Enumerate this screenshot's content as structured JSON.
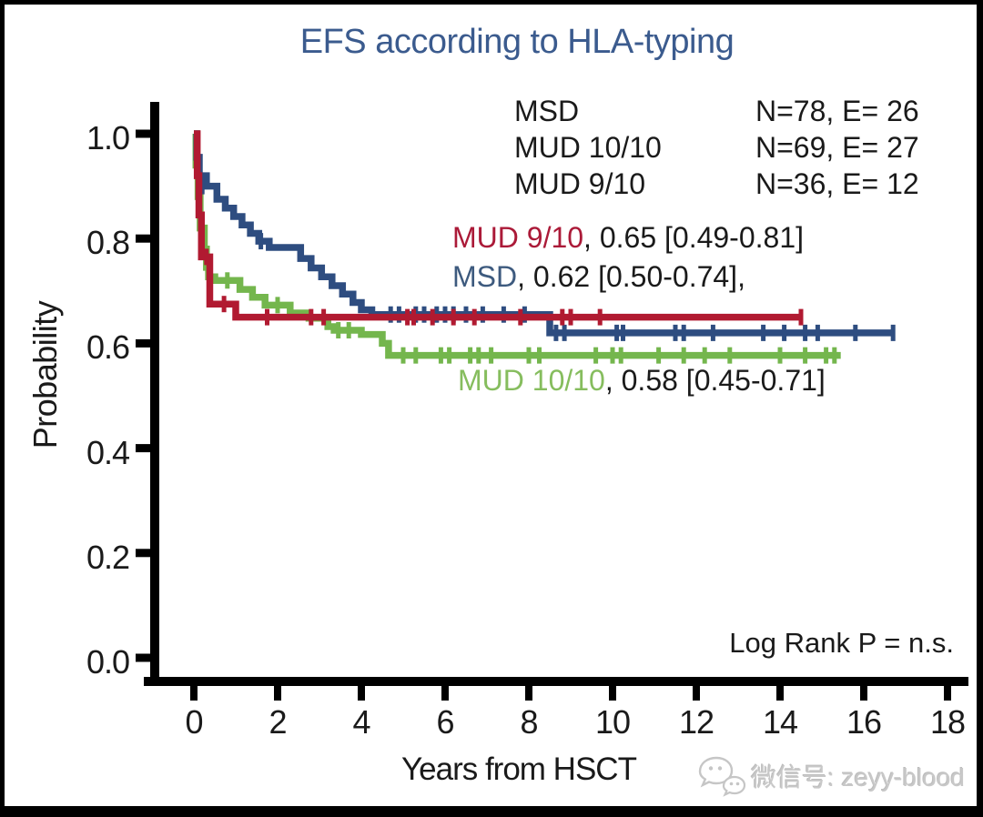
{
  "colors": {
    "background": "#ffffff",
    "frame": "#000000",
    "text": "#1a1a1a",
    "title": "#3b5b8e",
    "watermark": "#c8c8c8",
    "msd_blue": "#2e4d80",
    "mud1010_green": "#74b64d",
    "mud910_red": "#b11a31"
  },
  "title": "EFS according to HLA-typing",
  "legend": {
    "rows": [
      {
        "label": "MSD",
        "counts": "N=78, E= 26"
      },
      {
        "label": "MUD 10/10",
        "counts": "N=69, E= 27"
      },
      {
        "label": "MUD 9/10",
        "counts": "N=36, E= 12"
      }
    ]
  },
  "annotations": [
    {
      "label": "MUD 9/10",
      "rest": ", 0.65 [0.49-0.81]",
      "color": "#ab1a38"
    },
    {
      "label": "MSD",
      "rest": ", 0.62 [0.50-0.74],",
      "color": "#3d5a7e"
    },
    {
      "label": "MUD 10/10",
      "rest": ", 0.58 [0.45-0.71]",
      "color": "#86bd5e"
    }
  ],
  "stats_label": "Log Rank P = n.s.",
  "watermark": {
    "icon": "wechat-icon",
    "text": "微信号: zeyy-blood"
  },
  "chart_data": {
    "type": "line",
    "variant": "kaplan-meier-step",
    "title": "EFS according to HLA-typing",
    "xlabel": "Years from HSCT",
    "ylabel": "Probability",
    "xlim": [
      0,
      18
    ],
    "ylim": [
      0.0,
      1.0
    ],
    "xticks": [
      0,
      2,
      4,
      6,
      8,
      10,
      12,
      14,
      16,
      18
    ],
    "yticks": [
      1.0,
      0.8,
      0.6,
      0.4,
      0.2,
      0.0
    ],
    "grid": false,
    "legend_position": "top-right-inside",
    "stats": "Log Rank P = n.s.",
    "series": [
      {
        "name": "MSD",
        "color": "#2e4d80",
        "n": 78,
        "events": 26,
        "estimate": 0.62,
        "ci": [
          0.5,
          0.74
        ],
        "end": 16.7,
        "steps": [
          [
            0,
            1.0
          ],
          [
            0.07,
            0.955
          ],
          [
            0.13,
            0.92
          ],
          [
            0.3,
            0.9
          ],
          [
            0.55,
            0.875
          ],
          [
            0.75,
            0.858
          ],
          [
            0.95,
            0.842
          ],
          [
            1.15,
            0.826
          ],
          [
            1.35,
            0.81
          ],
          [
            1.55,
            0.795
          ],
          [
            1.8,
            0.783
          ],
          [
            2.55,
            0.762
          ],
          [
            2.8,
            0.744
          ],
          [
            3.05,
            0.727
          ],
          [
            3.3,
            0.71
          ],
          [
            3.55,
            0.694
          ],
          [
            3.8,
            0.678
          ],
          [
            4.0,
            0.664
          ],
          [
            4.25,
            0.655
          ],
          [
            8.5,
            0.62
          ]
        ],
        "censors": [
          [
            0.2,
            0.9
          ],
          [
            1.6,
            0.795
          ],
          [
            4.7,
            0.655
          ],
          [
            4.9,
            0.655
          ],
          [
            5.3,
            0.655
          ],
          [
            5.5,
            0.655
          ],
          [
            5.8,
            0.655
          ],
          [
            6.0,
            0.655
          ],
          [
            6.2,
            0.655
          ],
          [
            6.5,
            0.655
          ],
          [
            6.9,
            0.655
          ],
          [
            7.4,
            0.655
          ],
          [
            7.9,
            0.655
          ],
          [
            8.65,
            0.62
          ],
          [
            8.85,
            0.62
          ],
          [
            10.1,
            0.62
          ],
          [
            10.25,
            0.62
          ],
          [
            11.5,
            0.62
          ],
          [
            11.7,
            0.62
          ],
          [
            12.4,
            0.62
          ],
          [
            13.6,
            0.62
          ],
          [
            14.1,
            0.62
          ],
          [
            14.6,
            0.62
          ],
          [
            14.9,
            0.62
          ],
          [
            15.8,
            0.62
          ],
          [
            16.7,
            0.62
          ]
        ]
      },
      {
        "name": "MUD 10/10",
        "color": "#74b64d",
        "n": 69,
        "events": 27,
        "estimate": 0.58,
        "ci": [
          0.45,
          0.71
        ],
        "end": 15.45,
        "steps": [
          [
            0,
            1.0
          ],
          [
            0.05,
            0.94
          ],
          [
            0.1,
            0.88
          ],
          [
            0.15,
            0.82
          ],
          [
            0.25,
            0.78
          ],
          [
            0.3,
            0.745
          ],
          [
            0.35,
            0.727
          ],
          [
            0.5,
            0.72
          ],
          [
            1.1,
            0.703
          ],
          [
            1.4,
            0.688
          ],
          [
            1.7,
            0.673
          ],
          [
            2.3,
            0.658
          ],
          [
            2.75,
            0.648
          ],
          [
            3.2,
            0.632
          ],
          [
            3.35,
            0.625
          ],
          [
            4.0,
            0.617
          ],
          [
            4.5,
            0.6
          ],
          [
            4.65,
            0.577
          ]
        ],
        "censors": [
          [
            0.18,
            0.82
          ],
          [
            0.8,
            0.72
          ],
          [
            2.0,
            0.673
          ],
          [
            3.45,
            0.625
          ],
          [
            3.7,
            0.625
          ],
          [
            5.0,
            0.577
          ],
          [
            5.3,
            0.577
          ],
          [
            5.9,
            0.577
          ],
          [
            6.1,
            0.577
          ],
          [
            6.6,
            0.577
          ],
          [
            6.8,
            0.577
          ],
          [
            7.1,
            0.577
          ],
          [
            8.0,
            0.577
          ],
          [
            8.25,
            0.577
          ],
          [
            9.6,
            0.577
          ],
          [
            10.0,
            0.577
          ],
          [
            10.2,
            0.577
          ],
          [
            11.1,
            0.577
          ],
          [
            11.7,
            0.577
          ],
          [
            12.2,
            0.577
          ],
          [
            12.8,
            0.577
          ],
          [
            14.0,
            0.577
          ],
          [
            14.6,
            0.577
          ],
          [
            15.1,
            0.577
          ],
          [
            15.3,
            0.577
          ]
        ]
      },
      {
        "name": "MUD 9/10",
        "color": "#b11a31",
        "n": 36,
        "events": 12,
        "estimate": 0.65,
        "ci": [
          0.49,
          0.81
        ],
        "end": 14.55,
        "steps": [
          [
            0,
            1.0
          ],
          [
            0.08,
            0.92
          ],
          [
            0.12,
            0.845
          ],
          [
            0.18,
            0.765
          ],
          [
            0.38,
            0.675
          ],
          [
            1.0,
            0.65
          ]
        ],
        "censors": [
          [
            0.3,
            0.765
          ],
          [
            0.72,
            0.675
          ],
          [
            1.75,
            0.65
          ],
          [
            2.8,
            0.65
          ],
          [
            3.1,
            0.65
          ],
          [
            5.1,
            0.65
          ],
          [
            5.25,
            0.65
          ],
          [
            5.7,
            0.65
          ],
          [
            6.2,
            0.65
          ],
          [
            6.7,
            0.65
          ],
          [
            7.8,
            0.65
          ],
          [
            8.8,
            0.65
          ],
          [
            9.0,
            0.65
          ],
          [
            9.7,
            0.65
          ],
          [
            14.5,
            0.65
          ]
        ]
      }
    ]
  }
}
